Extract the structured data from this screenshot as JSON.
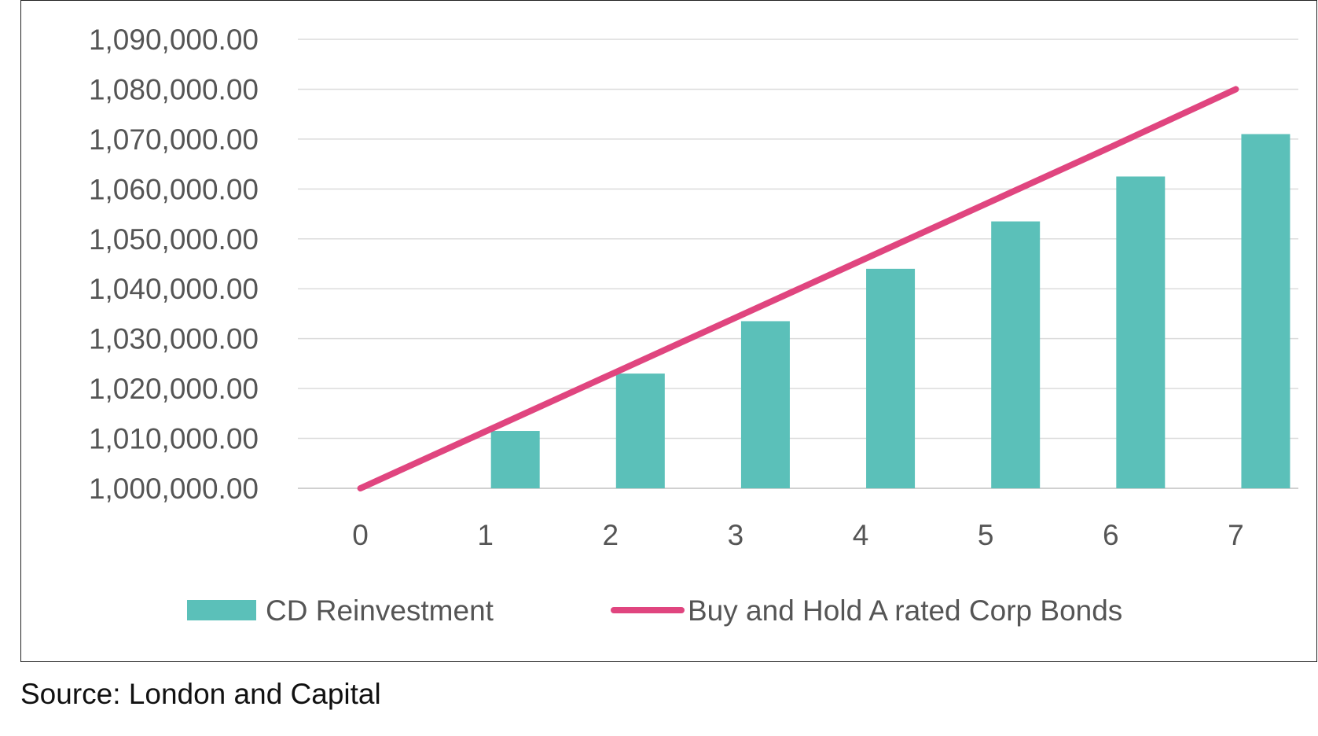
{
  "chart_data": {
    "type": "bar+line",
    "title": "",
    "xlabel": "",
    "ylabel": "",
    "categories": [
      "0",
      "1",
      "2",
      "3",
      "4",
      "5",
      "6",
      "7"
    ],
    "ylim": [
      1000000,
      1090000
    ],
    "yticks": [
      1000000,
      1010000,
      1020000,
      1030000,
      1040000,
      1050000,
      1060000,
      1070000,
      1080000,
      1090000
    ],
    "ytick_labels": [
      "1,000,000.00",
      "1,010,000.00",
      "1,020,000.00",
      "1,030,000.00",
      "1,040,000.00",
      "1,050,000.00",
      "1,060,000.00",
      "1,070,000.00",
      "1,080,000.00",
      "1,090,000.00"
    ],
    "grid": true,
    "legend_position": "bottom",
    "series": [
      {
        "name": "CD Reinvestment",
        "type": "bar",
        "color": "#5BC0B9",
        "values": [
          1000000,
          1011500,
          1023000,
          1033500,
          1044000,
          1053500,
          1062500,
          1071000
        ]
      },
      {
        "name": "Buy and Hold A rated Corp Bonds",
        "type": "line",
        "color": "#E0457F",
        "values": [
          1000000,
          1011400,
          1022800,
          1034200,
          1045600,
          1057000,
          1068400,
          1080000
        ]
      }
    ]
  },
  "source_note": "Source: London and Capital"
}
